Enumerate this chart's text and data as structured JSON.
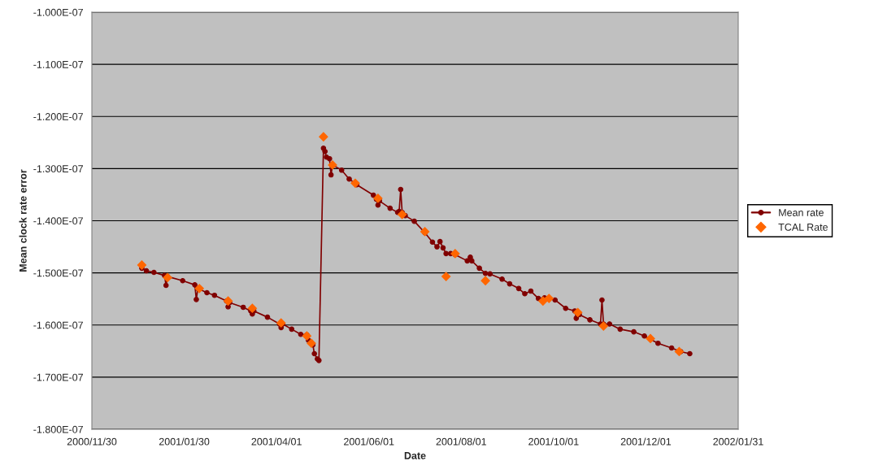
{
  "chart_data": {
    "type": "line",
    "xlabel": "Date",
    "ylabel": "Mean clock rate error",
    "xlim": [
      "2000-11-30",
      "2002-01-31"
    ],
    "xticks": [
      {
        "value": "2000-11-30",
        "label": "2000/11/30"
      },
      {
        "value": "2001-01-30",
        "label": "2001/01/30"
      },
      {
        "value": "2001-04-01",
        "label": "2001/04/01"
      },
      {
        "value": "2001-06-01",
        "label": "2001/06/01"
      },
      {
        "value": "2001-08-01",
        "label": "2001/08/01"
      },
      {
        "value": "2001-10-01",
        "label": "2001/10/01"
      },
      {
        "value": "2001-12-01",
        "label": "2001/12/01"
      },
      {
        "value": "2002-01-31",
        "label": "2002/01/31"
      }
    ],
    "ylim": [
      -1.8e-07,
      -1e-07
    ],
    "yticks": [
      {
        "value": -1.8e-07,
        "label": "-1.800E-07"
      },
      {
        "value": -1.7e-07,
        "label": "-1.700E-07"
      },
      {
        "value": -1.6e-07,
        "label": "-1.600E-07"
      },
      {
        "value": -1.5e-07,
        "label": "-1.500E-07"
      },
      {
        "value": -1.4e-07,
        "label": "-1.400E-07"
      },
      {
        "value": -1.3e-07,
        "label": "-1.300E-07"
      },
      {
        "value": -1.2e-07,
        "label": "-1.200E-07"
      },
      {
        "value": -1.1e-07,
        "label": "-1.100E-07"
      },
      {
        "value": -1e-07,
        "label": "-1.000E-07"
      }
    ],
    "grid": "y",
    "legend": "right",
    "series": [
      {
        "name": "Mean rate",
        "marker": "circle",
        "line_style": "solid",
        "color": "#800000",
        "x": [
          "2001-01-02",
          "2001-01-05",
          "2001-01-10",
          "2001-01-17",
          "2001-01-18",
          "2001-01-19",
          "2001-01-29",
          "2001-02-06",
          "2001-02-07",
          "2001-02-08",
          "2001-02-14",
          "2001-02-19",
          "2001-02-27",
          "2001-02-28",
          "2001-03-01",
          "2001-03-10",
          "2001-03-15",
          "2001-03-16",
          "2001-03-17",
          "2001-03-26",
          "2001-04-03",
          "2001-04-04",
          "2001-04-05",
          "2001-04-11",
          "2001-04-17",
          "2001-04-21",
          "2001-04-22",
          "2001-04-25",
          "2001-04-26",
          "2001-04-28",
          "2001-04-29",
          "2001-05-02",
          "2001-05-03",
          "2001-05-04",
          "2001-05-06",
          "2001-05-07",
          "2001-05-08",
          "2001-05-14",
          "2001-05-19",
          "2001-05-24",
          "2001-06-04",
          "2001-06-06",
          "2001-06-07",
          "2001-06-08",
          "2001-06-15",
          "2001-06-20",
          "2001-06-21",
          "2001-06-22",
          "2001-06-23",
          "2001-06-25",
          "2001-07-01",
          "2001-07-08",
          "2001-07-13",
          "2001-07-16",
          "2001-07-18",
          "2001-07-20",
          "2001-07-22",
          "2001-07-25",
          "2001-07-28",
          "2001-08-05",
          "2001-08-07",
          "2001-08-08",
          "2001-08-13",
          "2001-08-17",
          "2001-08-20",
          "2001-08-28",
          "2001-09-02",
          "2001-09-08",
          "2001-09-12",
          "2001-09-16",
          "2001-09-21",
          "2001-09-25",
          "2001-10-02",
          "2001-10-09",
          "2001-10-15",
          "2001-10-16",
          "2001-10-18",
          "2001-10-25",
          "2001-11-01",
          "2001-11-02",
          "2001-11-03",
          "2001-11-07",
          "2001-11-14",
          "2001-11-23",
          "2001-11-30",
          "2001-12-09",
          "2001-12-18",
          "2001-12-24",
          "2001-12-30"
        ],
        "values": [
          -1.491e-07,
          -1.496e-07,
          -1.499e-07,
          -1.505e-07,
          -1.524e-07,
          -1.507e-07,
          -1.515e-07,
          -1.523e-07,
          -1.551e-07,
          -1.53e-07,
          -1.538e-07,
          -1.543e-07,
          -1.554e-07,
          -1.565e-07,
          -1.557e-07,
          -1.566e-07,
          -1.573e-07,
          -1.579e-07,
          -1.573e-07,
          -1.585e-07,
          -1.598e-07,
          -1.605e-07,
          -1.598e-07,
          -1.608e-07,
          -1.618e-07,
          -1.619e-07,
          -1.629e-07,
          -1.638e-07,
          -1.655e-07,
          -1.665e-07,
          -1.668e-07,
          -1.261e-07,
          -1.267e-07,
          -1.278e-07,
          -1.281e-07,
          -1.312e-07,
          -1.293e-07,
          -1.303e-07,
          -1.32e-07,
          -1.331e-07,
          -1.351e-07,
          -1.359e-07,
          -1.37e-07,
          -1.362e-07,
          -1.376e-07,
          -1.384e-07,
          -1.382e-07,
          -1.34e-07,
          -1.384e-07,
          -1.39e-07,
          -1.401e-07,
          -1.423e-07,
          -1.441e-07,
          -1.45e-07,
          -1.44e-07,
          -1.452e-07,
          -1.463e-07,
          -1.463e-07,
          -1.465e-07,
          -1.477e-07,
          -1.47e-07,
          -1.477e-07,
          -1.491e-07,
          -1.501e-07,
          -1.502e-07,
          -1.512e-07,
          -1.521e-07,
          -1.53e-07,
          -1.54e-07,
          -1.535e-07,
          -1.549e-07,
          -1.548e-07,
          -1.552e-07,
          -1.568e-07,
          -1.573e-07,
          -1.587e-07,
          -1.58e-07,
          -1.59e-07,
          -1.598e-07,
          -1.552e-07,
          -1.598e-07,
          -1.598e-07,
          -1.608e-07,
          -1.613e-07,
          -1.621e-07,
          -1.635e-07,
          -1.644e-07,
          -1.651e-07,
          -1.655e-07
        ]
      },
      {
        "name": "TCAL Rate",
        "type": "scatter",
        "marker": "diamond",
        "color": "#ff6600",
        "x": [
          "2001-01-02",
          "2001-01-19",
          "2001-02-09",
          "2001-02-28",
          "2001-03-16",
          "2001-04-04",
          "2001-04-21",
          "2001-04-24",
          "2001-05-02",
          "2001-05-08",
          "2001-05-23",
          "2001-06-07",
          "2001-06-23",
          "2001-07-08",
          "2001-07-22",
          "2001-07-28",
          "2001-08-17",
          "2001-09-24",
          "2001-09-28",
          "2001-10-17",
          "2001-11-03",
          "2001-12-04",
          "2001-12-23"
        ],
        "values": [
          -1.485e-07,
          -1.509e-07,
          -1.53e-07,
          -1.554e-07,
          -1.568e-07,
          -1.596e-07,
          -1.621e-07,
          -1.635e-07,
          -1.239e-07,
          -1.293e-07,
          -1.328e-07,
          -1.357e-07,
          -1.388e-07,
          -1.421e-07,
          -1.507e-07,
          -1.463e-07,
          -1.515e-07,
          -1.554e-07,
          -1.549e-07,
          -1.576e-07,
          -1.602e-07,
          -1.626e-07,
          -1.651e-07
        ]
      }
    ]
  }
}
